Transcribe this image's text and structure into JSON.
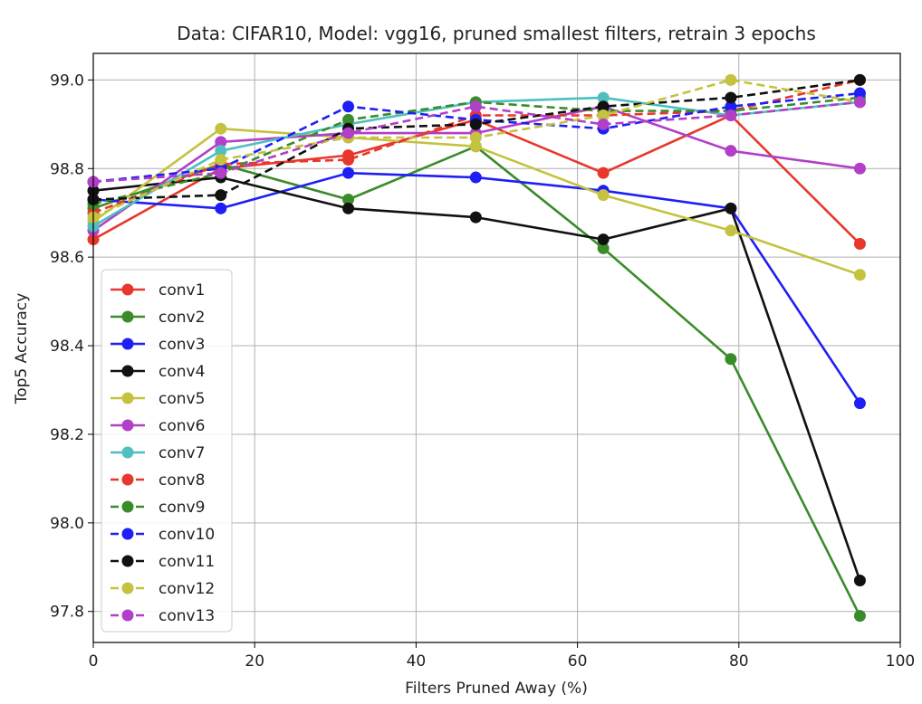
{
  "chart_data": {
    "type": "line",
    "title": "Data: CIFAR10, Model: vgg16, pruned smallest filters, retrain 3 epochs",
    "xlabel": "Filters Pruned Away (%)",
    "ylabel": "Top5 Accuracy",
    "xlim": [
      0,
      100
    ],
    "ylim": [
      97.73,
      99.06
    ],
    "xticks": [
      0,
      20,
      40,
      60,
      80,
      100
    ],
    "xtick_labels": [
      "0",
      "20",
      "40",
      "60",
      "80",
      "100"
    ],
    "yticks": [
      97.8,
      98.0,
      98.2,
      98.4,
      98.6,
      98.8,
      99.0
    ],
    "ytick_labels": [
      "97.8",
      "98.0",
      "98.2",
      "98.4",
      "98.6",
      "98.8",
      "99.0"
    ],
    "grid": true,
    "legend_position": "lower-left",
    "x": [
      0,
      15.8,
      31.6,
      47.4,
      63.2,
      79,
      95
    ],
    "series": [
      {
        "name": "conv1",
        "color": "#e8372b",
        "dashed": false,
        "values": [
          98.64,
          98.8,
          98.83,
          98.91,
          98.79,
          98.92,
          98.63
        ]
      },
      {
        "name": "conv2",
        "color": "#3a8c2a",
        "dashed": false,
        "values": [
          98.71,
          98.81,
          98.73,
          98.85,
          98.62,
          98.37,
          97.79
        ]
      },
      {
        "name": "conv3",
        "color": "#1f1ff5",
        "dashed": false,
        "values": [
          98.73,
          98.71,
          98.79,
          98.78,
          98.75,
          98.71,
          98.27
        ]
      },
      {
        "name": "conv4",
        "color": "#111111",
        "dashed": false,
        "values": [
          98.75,
          98.78,
          98.71,
          98.69,
          98.64,
          98.71,
          97.87
        ]
      },
      {
        "name": "conv5",
        "color": "#c4c23e",
        "dashed": false,
        "values": [
          98.68,
          98.89,
          98.87,
          98.85,
          98.74,
          98.66,
          98.56
        ]
      },
      {
        "name": "conv6",
        "color": "#b23fc7",
        "dashed": false,
        "values": [
          98.66,
          98.86,
          98.88,
          98.88,
          98.94,
          98.84,
          98.8
        ]
      },
      {
        "name": "conv7",
        "color": "#4fbfbf",
        "dashed": false,
        "values": [
          98.67,
          98.84,
          98.9,
          98.95,
          98.96,
          98.92,
          98.95
        ]
      },
      {
        "name": "conv8",
        "color": "#e8372b",
        "dashed": true,
        "values": [
          98.7,
          98.81,
          98.82,
          98.92,
          98.92,
          98.93,
          99.0
        ]
      },
      {
        "name": "conv9",
        "color": "#3a8c2a",
        "dashed": true,
        "values": [
          98.72,
          98.79,
          98.91,
          98.95,
          98.93,
          98.93,
          98.96
        ]
      },
      {
        "name": "conv10",
        "color": "#1f1ff5",
        "dashed": true,
        "values": [
          98.77,
          98.8,
          98.94,
          98.91,
          98.89,
          98.94,
          98.97
        ]
      },
      {
        "name": "conv11",
        "color": "#111111",
        "dashed": true,
        "values": [
          98.73,
          98.74,
          98.89,
          98.9,
          98.94,
          98.96,
          99.0
        ]
      },
      {
        "name": "conv12",
        "color": "#c4c23e",
        "dashed": true,
        "values": [
          98.69,
          98.82,
          98.87,
          98.87,
          98.92,
          99.0,
          98.95
        ]
      },
      {
        "name": "conv13",
        "color": "#b23fc7",
        "dashed": true,
        "values": [
          98.77,
          98.79,
          98.88,
          98.94,
          98.9,
          98.92,
          98.95
        ]
      }
    ]
  }
}
